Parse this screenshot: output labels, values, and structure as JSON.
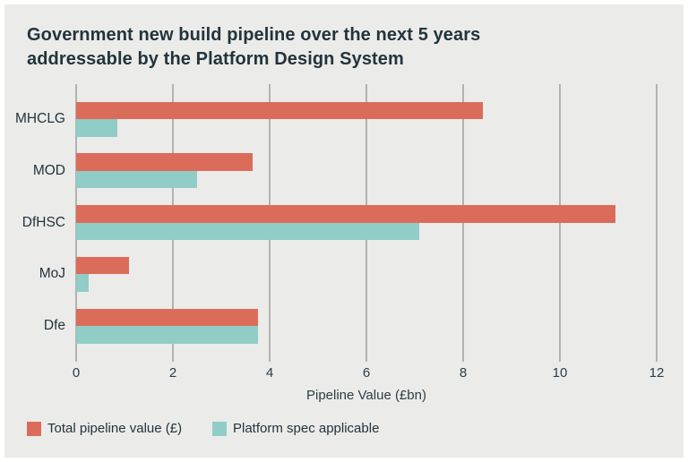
{
  "panel": {
    "background_color": "#EBEBE9",
    "border_color": "#FFFFFF"
  },
  "title": {
    "lines": [
      "Government new build pipeline over the next 5 years",
      "addressable by the Platform Design System"
    ],
    "full": "Government new build pipeline over the next 5 years addressable by the Platform Design System"
  },
  "chart_data": {
    "type": "bar",
    "orientation": "horizontal",
    "categories": [
      "MHCLG",
      "MOD",
      "DfHSC",
      "MoJ",
      "Dfe"
    ],
    "series": [
      {
        "name": "Total pipeline value (£)",
        "color": "#DB6C5A",
        "values": [
          8.4,
          3.65,
          11.15,
          1.1,
          3.75
        ]
      },
      {
        "name": "Platform spec applicable",
        "color": "#90CDC6",
        "values": [
          0.85,
          2.5,
          7.1,
          0.25,
          3.75
        ]
      }
    ],
    "xlabel": "Pipeline Value (£bn)",
    "ylabel": "",
    "xlim": [
      0,
      12
    ],
    "xticks": [
      0,
      2,
      4,
      6,
      8,
      10,
      12
    ],
    "grid": true,
    "gridline_color": "#B2B2B0",
    "text_color": "#22343C",
    "legend_position": "bottom-left"
  }
}
